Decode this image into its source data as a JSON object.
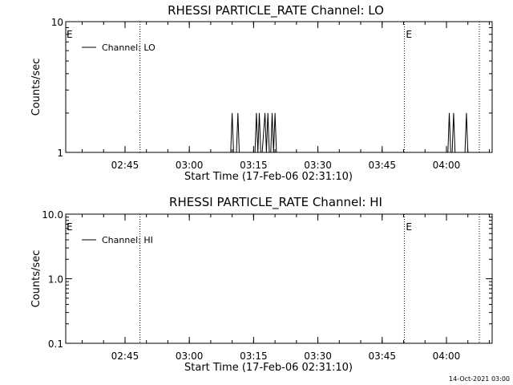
{
  "footer": {
    "timestamp": "14-Oct-2021 03:00"
  },
  "chart_data": [
    {
      "type": "line",
      "title": "RHESSI PARTICLE_RATE Channel: LO",
      "xlabel": "Start Time (17-Feb-06 02:31:10)",
      "ylabel": "Counts/sec",
      "x_ticks": [
        "02:45",
        "03:00",
        "03:15",
        "03:30",
        "03:45",
        "04:00"
      ],
      "y_ticks": [
        "1",
        "10"
      ],
      "y_scale": "log",
      "xlim": [
        "02:31:10",
        "04:10:40"
      ],
      "ylim": [
        1,
        10
      ],
      "legend": {
        "entries": [
          "Channel: LO"
        ],
        "position": "top-left"
      },
      "event_lines": [
        {
          "time": "02:48:30",
          "label": ""
        },
        {
          "time": "03:50:10",
          "label": "E"
        },
        {
          "time": "04:07:40",
          "label": ""
        }
      ],
      "edge_marker": "E",
      "series": [
        {
          "name": "Channel: LO",
          "x": [
            "02:31:10",
            "03:09:40",
            "03:10:00",
            "03:10:20",
            "03:11:00",
            "03:11:20",
            "03:11:40",
            "03:15:20",
            "03:15:40",
            "03:16:00",
            "03:16:20",
            "03:16:40",
            "03:17:00",
            "03:17:40",
            "03:18:00",
            "03:18:20",
            "03:18:40",
            "03:19:00",
            "03:19:20",
            "03:19:40",
            "03:20:00",
            "03:20:20",
            "04:00:20",
            "04:00:40",
            "04:01:00",
            "04:01:20",
            "04:01:40",
            "04:02:00",
            "04:04:20",
            "04:04:40",
            "04:05:00",
            "04:10:40"
          ],
          "y": [
            1,
            1,
            2,
            1,
            1,
            2,
            1,
            1,
            2,
            1,
            2,
            1,
            1,
            2,
            1,
            2,
            1,
            1,
            2,
            1,
            2,
            1,
            1,
            2,
            1,
            1,
            2,
            1,
            1,
            2,
            1,
            1
          ]
        }
      ]
    },
    {
      "type": "line",
      "title": "RHESSI PARTICLE_RATE Channel: HI",
      "xlabel": "Start Time (17-Feb-06 02:31:10)",
      "ylabel": "Counts/sec",
      "x_ticks": [
        "02:45",
        "03:00",
        "03:15",
        "03:30",
        "03:45",
        "04:00"
      ],
      "y_ticks": [
        "0.1",
        "1.0",
        "10.0"
      ],
      "y_scale": "log",
      "xlim": [
        "02:31:10",
        "04:10:40"
      ],
      "ylim": [
        0.1,
        10
      ],
      "legend": {
        "entries": [
          "Channel: HI"
        ],
        "position": "top-left"
      },
      "event_lines": [
        {
          "time": "02:48:30",
          "label": ""
        },
        {
          "time": "03:50:10",
          "label": "E"
        },
        {
          "time": "04:07:40",
          "label": ""
        }
      ],
      "edge_marker": "E",
      "series": [
        {
          "name": "Channel: HI",
          "x": [],
          "y": []
        }
      ]
    }
  ]
}
